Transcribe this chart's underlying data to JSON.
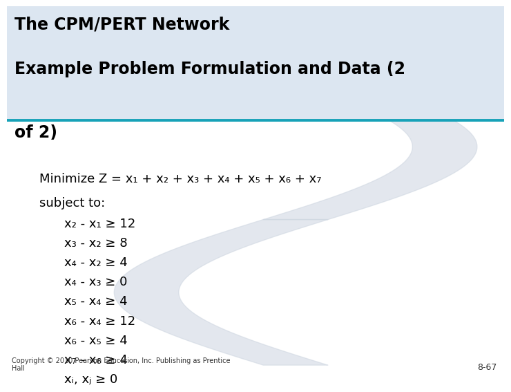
{
  "title_line1": "The CPM/PERT Network",
  "title_line2": "Example Problem Formulation and Data (2",
  "title_line3": "of 2)",
  "title_bg_color": "#dce6f1",
  "title_font_size": 17,
  "title_font_weight": "bold",
  "divider_color": "#17a2b8",
  "body_bg_color": "#ffffff",
  "minimize_line": "Minimize Z = x₁ + x₂ + x₃ + x₄ + x₅ + x₆ + x₇",
  "subject_to": "subject to:",
  "constraints": [
    "x₂ - x₁ ≥ 12",
    "x₃ - x₂ ≥ 8",
    "x₄ - x₂ ≥ 4",
    "x₄ - x₃ ≥ 0",
    "x₅ - x₄ ≥ 4",
    "x₆ - x₄ ≥ 12",
    "x₆ - x₅ ≥ 4",
    "x₇ - x₆ ≥ 4",
    "xᵢ, xⱼ ≥ 0"
  ],
  "copyright_text": "Copyright © 2010 Pearson Education, Inc. Publishing as Prentice\nHall",
  "page_number": "8-67",
  "text_color": "#000000",
  "constraint_indent": 0.115,
  "body_font_size": 13,
  "constraint_font_size": 13,
  "watermark_color": "#cdd5e0",
  "watermark_alpha": 0.55
}
